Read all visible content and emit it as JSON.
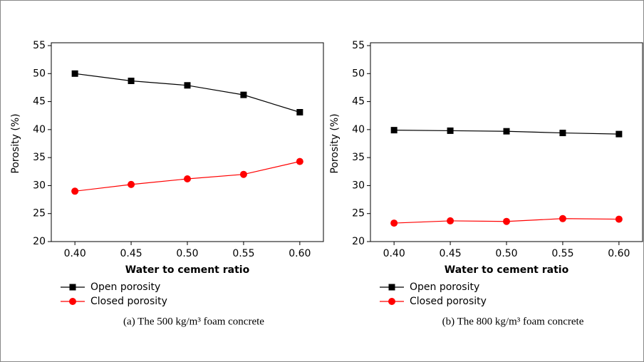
{
  "chart_data": [
    {
      "type": "line",
      "caption": "(a) The 500 kg/m³ foam concrete",
      "xlabel": "Water to cement ratio",
      "ylabel": "Porosity (%)",
      "x": [
        0.4,
        0.45,
        0.5,
        0.55,
        0.6
      ],
      "series": [
        {
          "name": "Open porosity",
          "color": "#000000",
          "marker": "square",
          "values": [
            50.0,
            48.7,
            47.9,
            46.2,
            43.1
          ]
        },
        {
          "name": "Closed porosity",
          "color": "#ff0000",
          "marker": "circle",
          "values": [
            29.0,
            30.2,
            31.2,
            32.0,
            34.3
          ]
        }
      ],
      "xlim": [
        0.379,
        0.621
      ],
      "ylim": [
        20,
        55
      ],
      "xticks": [
        {
          "value": 0.4,
          "label": "0.40"
        },
        {
          "value": 0.45,
          "label": "0.45"
        },
        {
          "value": 0.5,
          "label": "0.50"
        },
        {
          "value": 0.55,
          "label": "0.55"
        },
        {
          "value": 0.6,
          "label": "0.60"
        }
      ],
      "yticks": [
        20,
        25,
        30,
        35,
        40,
        45,
        50,
        55
      ]
    },
    {
      "type": "line",
      "caption": "(b) The 800 kg/m³ foam concrete",
      "xlabel": "Water to cement ratio",
      "ylabel": "Porosity (%)",
      "x": [
        0.4,
        0.45,
        0.5,
        0.55,
        0.6
      ],
      "series": [
        {
          "name": "Open porosity",
          "color": "#000000",
          "marker": "square",
          "values": [
            39.9,
            39.8,
            39.7,
            39.4,
            39.2
          ]
        },
        {
          "name": "Closed porosity",
          "color": "#ff0000",
          "marker": "circle",
          "values": [
            23.3,
            23.7,
            23.6,
            24.1,
            24.0
          ]
        }
      ],
      "xlim": [
        0.379,
        0.621
      ],
      "ylim": [
        20,
        55
      ],
      "xticks": [
        {
          "value": 0.4,
          "label": "0.40"
        },
        {
          "value": 0.45,
          "label": "0.45"
        },
        {
          "value": 0.5,
          "label": "0.50"
        },
        {
          "value": 0.55,
          "label": "0.55"
        },
        {
          "value": 0.6,
          "label": "0.60"
        }
      ],
      "yticks": [
        20,
        25,
        30,
        35,
        40,
        45,
        50,
        55
      ]
    }
  ]
}
